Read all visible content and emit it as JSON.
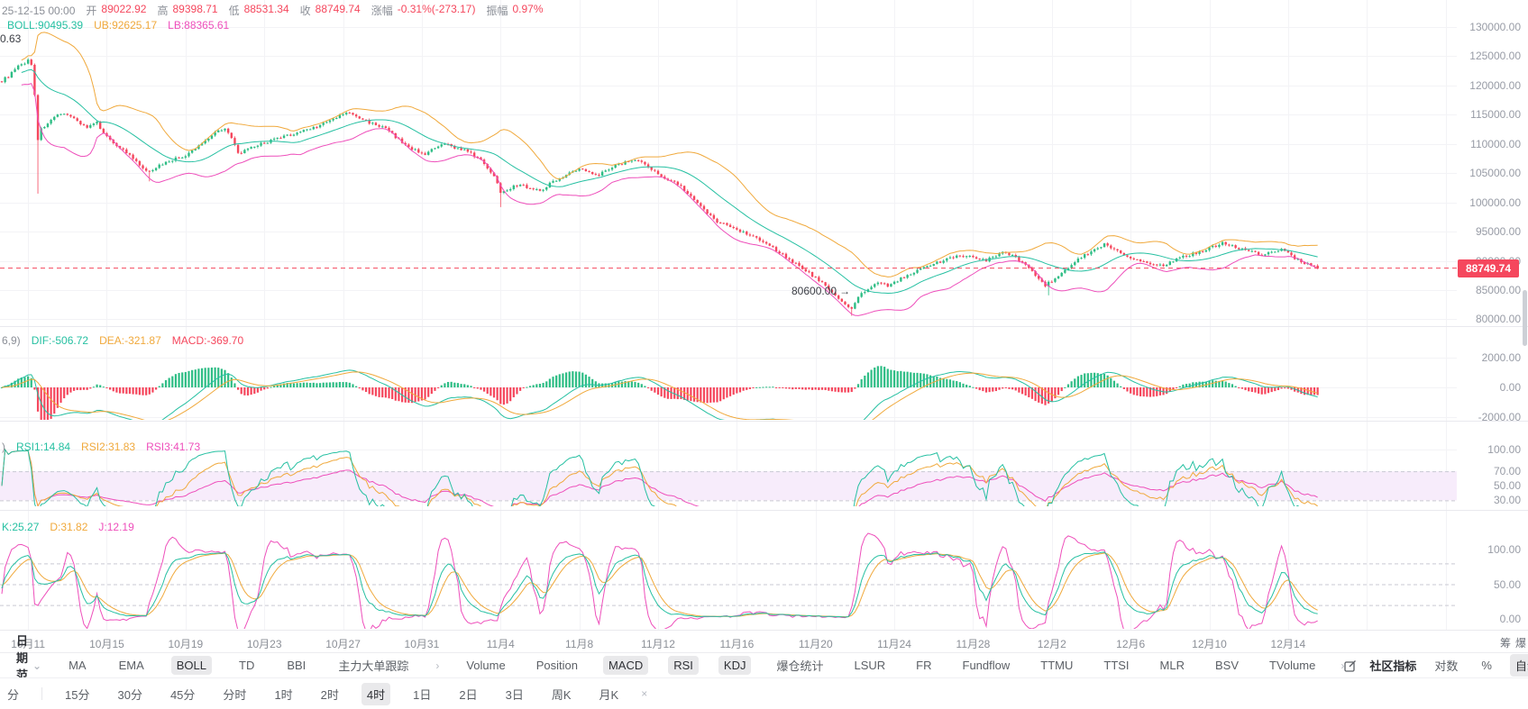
{
  "colors": {
    "up": "#2ebd85",
    "down": "#f5475d",
    "teal": "#26c0a2",
    "orange": "#f0a93c",
    "magenta": "#ee4fbb",
    "price_line": "#f5475d",
    "band": "#f7ecfb",
    "grid": "#f3f3f6",
    "dashed": "#c9c9d3",
    "separator": "#e9e9ee"
  },
  "header": {
    "datetime": "25-12-15 00:00",
    "fields": [
      {
        "label": "开",
        "value": "89022.92"
      },
      {
        "label": "高",
        "value": "89398.71"
      },
      {
        "label": "低",
        "value": "88531.34"
      },
      {
        "label": "收",
        "value": "88749.74"
      },
      {
        "label": "涨幅",
        "value": "-0.31%(-273.17)"
      },
      {
        "label": "振幅",
        "value": "0.97%"
      }
    ]
  },
  "boll_header": {
    "boll": "BOLL:90495.39",
    "ub": "UB:92625.17",
    "lb": "LB:88365.61"
  },
  "macd_header": {
    "prefix": "6,9)",
    "dif": "DIF:-506.72",
    "dea": "DEA:-321.87",
    "macd": "MACD:-369.70"
  },
  "rsi_header": {
    "prefix": ")",
    "rsi1": "RSI1:14.84",
    "rsi2": "RSI2:31.83",
    "rsi3": "RSI3:41.73"
  },
  "kdj_header": {
    "k": "K:25.27",
    "d": "D:31.82",
    "j": "J:12.19"
  },
  "corner_text": "0.63",
  "annotation": {
    "text": "80600.00",
    "arrow": "→"
  },
  "price_tag": "88749.74",
  "axes": {
    "price": [
      "130000.00",
      "125000.00",
      "120000.00",
      "115000.00",
      "110000.00",
      "105000.00",
      "100000.00",
      "95000.00",
      "90000.00",
      "85000.00",
      "80000.00"
    ],
    "macd": [
      "2000.00",
      "0.00",
      "-2000.00"
    ],
    "rsi": [
      "100.00",
      "70.00",
      "50.00",
      "30.00"
    ],
    "kdj": [
      "100.00",
      "50.00",
      "0.00"
    ]
  },
  "date_axis": {
    "labels": [
      "10月11",
      "10月15",
      "10月19",
      "10月23",
      "10月27",
      "10月31",
      "11月4",
      "11月8",
      "11月12",
      "11月16",
      "11月20",
      "11月24",
      "11月28",
      "12月2",
      "12月6",
      "12月10",
      "12月14"
    ],
    "side_labels": [
      "筹",
      "爆"
    ]
  },
  "toolbar": {
    "date_range": "日期范围",
    "main_indicators": [
      {
        "label": "MA",
        "active": false
      },
      {
        "label": "EMA",
        "active": false
      },
      {
        "label": "BOLL",
        "active": true
      },
      {
        "label": "TD",
        "active": false
      },
      {
        "label": "BBI",
        "active": false
      },
      {
        "label": "主力大单跟踪",
        "active": false
      }
    ],
    "sub_indicators": [
      {
        "label": "Volume",
        "active": false
      },
      {
        "label": "Position",
        "active": false
      },
      {
        "label": "MACD",
        "active": true
      },
      {
        "label": "RSI",
        "active": true
      },
      {
        "label": "KDJ",
        "active": true
      },
      {
        "label": "爆仓统计",
        "active": false
      },
      {
        "label": "LSUR",
        "active": false
      },
      {
        "label": "FR",
        "active": false
      },
      {
        "label": "Fundflow",
        "active": false
      },
      {
        "label": "TTMU",
        "active": false
      },
      {
        "label": "TTSI",
        "active": false
      },
      {
        "label": "MLR",
        "active": false
      },
      {
        "label": "BSV",
        "active": false
      },
      {
        "label": "TVolume",
        "active": false
      }
    ],
    "community": "社区指标",
    "log": "对数",
    "percent": "%",
    "auto": "自动"
  },
  "timeframe_bar": {
    "items": [
      {
        "label": "分",
        "active": false
      },
      {
        "label": "15分",
        "active": false
      },
      {
        "label": "30分",
        "active": false
      },
      {
        "label": "45分",
        "active": false
      },
      {
        "label": "分时",
        "active": false
      },
      {
        "label": "1时",
        "active": false
      },
      {
        "label": "2时",
        "active": false
      },
      {
        "label": "4时",
        "active": true
      },
      {
        "label": "1日",
        "active": false
      },
      {
        "label": "2日",
        "active": false
      },
      {
        "label": "3日",
        "active": false
      },
      {
        "label": "周K",
        "active": false
      },
      {
        "label": "月K",
        "active": false
      }
    ]
  },
  "icons": {
    "chevron_down": "⌄",
    "chevron_right": "›",
    "close": "×",
    "arrow_right": "→"
  },
  "chart_data": {
    "type": "candlestick",
    "n": 402,
    "last_price": 88749.74,
    "low_annotation": 80600,
    "price_axis_range": [
      80000,
      130000
    ],
    "indicator_params": {
      "boll": [
        20,
        2
      ],
      "macd": [
        12,
        26,
        9
      ],
      "rsi": [
        6,
        12,
        24
      ],
      "kdj": [
        9,
        3,
        3
      ]
    },
    "close_waypoints": [
      [
        0,
        120800
      ],
      [
        2,
        121600
      ],
      [
        5,
        123200
      ],
      [
        8,
        124300
      ],
      [
        9,
        123600
      ],
      [
        10,
        118500
      ],
      [
        11,
        110800
      ],
      [
        12,
        112500
      ],
      [
        14,
        113600
      ],
      [
        17,
        114800
      ],
      [
        20,
        115200
      ],
      [
        23,
        113900
      ],
      [
        26,
        112800
      ],
      [
        29,
        113600
      ],
      [
        32,
        111200
      ],
      [
        35,
        109800
      ],
      [
        38,
        108500
      ],
      [
        41,
        106900
      ],
      [
        44,
        105200
      ],
      [
        47,
        106000
      ],
      [
        50,
        106900
      ],
      [
        53,
        107500
      ],
      [
        56,
        107900
      ],
      [
        59,
        109200
      ],
      [
        62,
        110600
      ],
      [
        65,
        112000
      ],
      [
        68,
        112800
      ],
      [
        70,
        110900
      ],
      [
        72,
        108400
      ],
      [
        75,
        109000
      ],
      [
        78,
        109800
      ],
      [
        81,
        110400
      ],
      [
        84,
        110900
      ],
      [
        87,
        111400
      ],
      [
        90,
        111900
      ],
      [
        93,
        112500
      ],
      [
        96,
        113000
      ],
      [
        99,
        113700
      ],
      [
        102,
        114500
      ],
      [
        105,
        115400
      ],
      [
        108,
        114700
      ],
      [
        111,
        113900
      ],
      [
        114,
        113300
      ],
      [
        117,
        112600
      ],
      [
        120,
        111200
      ],
      [
        123,
        109800
      ],
      [
        126,
        108900
      ],
      [
        129,
        108300
      ],
      [
        132,
        109200
      ],
      [
        135,
        110000
      ],
      [
        138,
        109400
      ],
      [
        141,
        108900
      ],
      [
        144,
        108000
      ],
      [
        147,
        106700
      ],
      [
        150,
        104500
      ],
      [
        152,
        101800
      ],
      [
        155,
        102500
      ],
      [
        158,
        103100
      ],
      [
        161,
        102400
      ],
      [
        164,
        102000
      ],
      [
        167,
        103200
      ],
      [
        170,
        104200
      ],
      [
        173,
        105000
      ],
      [
        176,
        105700
      ],
      [
        179,
        105200
      ],
      [
        182,
        104800
      ],
      [
        185,
        105800
      ],
      [
        188,
        106500
      ],
      [
        191,
        107100
      ],
      [
        194,
        107300
      ],
      [
        197,
        106000
      ],
      [
        200,
        104800
      ],
      [
        203,
        104000
      ],
      [
        206,
        103200
      ],
      [
        209,
        101500
      ],
      [
        212,
        99700
      ],
      [
        215,
        98200
      ],
      [
        218,
        96800
      ],
      [
        221,
        96100
      ],
      [
        224,
        95400
      ],
      [
        227,
        94700
      ],
      [
        230,
        94000
      ],
      [
        233,
        93000
      ],
      [
        236,
        91800
      ],
      [
        239,
        90700
      ],
      [
        242,
        89500
      ],
      [
        245,
        88300
      ],
      [
        248,
        87100
      ],
      [
        250,
        86200
      ],
      [
        253,
        84700
      ],
      [
        256,
        82900
      ],
      [
        259,
        81700
      ],
      [
        261,
        83800
      ],
      [
        264,
        85200
      ],
      [
        267,
        86200
      ],
      [
        270,
        85800
      ],
      [
        273,
        86600
      ],
      [
        276,
        87600
      ],
      [
        279,
        88300
      ],
      [
        282,
        89000
      ],
      [
        285,
        89700
      ],
      [
        288,
        90300
      ],
      [
        291,
        90700
      ],
      [
        294,
        91000
      ],
      [
        297,
        90500
      ],
      [
        300,
        90100
      ],
      [
        303,
        90900
      ],
      [
        306,
        91500
      ],
      [
        309,
        90500
      ],
      [
        312,
        89200
      ],
      [
        315,
        87600
      ],
      [
        318,
        85800
      ],
      [
        321,
        87000
      ],
      [
        324,
        88400
      ],
      [
        327,
        89800
      ],
      [
        330,
        91000
      ],
      [
        333,
        92000
      ],
      [
        336,
        92800
      ],
      [
        339,
        92000
      ],
      [
        342,
        91100
      ],
      [
        345,
        90400
      ],
      [
        348,
        89800
      ],
      [
        351,
        89400
      ],
      [
        354,
        89200
      ],
      [
        357,
        90000
      ],
      [
        360,
        90700
      ],
      [
        363,
        91200
      ],
      [
        366,
        91700
      ],
      [
        369,
        92400
      ],
      [
        372,
        93000
      ],
      [
        375,
        92500
      ],
      [
        378,
        92000
      ],
      [
        381,
        91500
      ],
      [
        384,
        91100
      ],
      [
        387,
        91500
      ],
      [
        390,
        91900
      ],
      [
        392,
        91300
      ],
      [
        394,
        90500
      ],
      [
        396,
        89900
      ],
      [
        398,
        89400
      ],
      [
        400,
        89000
      ],
      [
        401,
        88749.74
      ]
    ],
    "wick_lows": [
      [
        11,
        101500
      ],
      [
        45,
        103600
      ],
      [
        152,
        99200
      ],
      [
        259,
        80600
      ],
      [
        319,
        84100
      ]
    ]
  }
}
